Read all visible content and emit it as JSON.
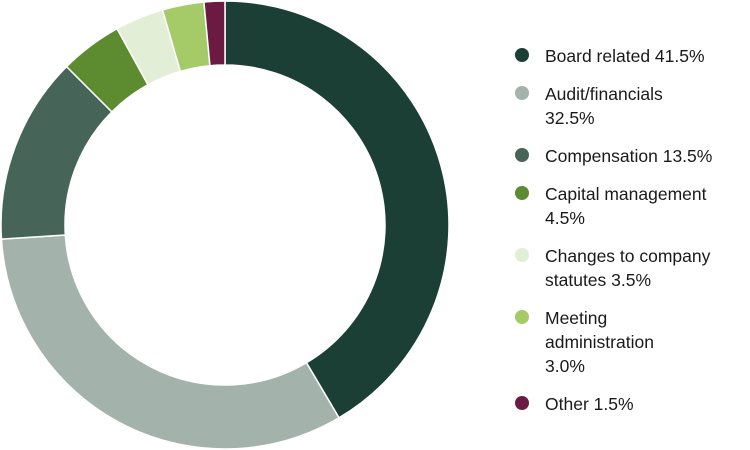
{
  "chart_data": {
    "type": "pie",
    "variant": "donut",
    "start": "top",
    "direction": "clockwise",
    "legend_position": "right",
    "slices": [
      {
        "label": "Board related 41.5%",
        "value": 41.5,
        "color": "#1b3f34"
      },
      {
        "label": "Audit/financials 32.5%",
        "value": 32.5,
        "color": "#a3b3ac"
      },
      {
        "label": "Compensation 13.5%",
        "value": 13.5,
        "color": "#476459"
      },
      {
        "label": "Capital management 4.5%",
        "value": 4.5,
        "color": "#5d8b30"
      },
      {
        "label": "Changes to company statutes 3.5%",
        "value": 3.5,
        "color": "#e2eed6"
      },
      {
        "label": "Meeting administration 3.0%",
        "value": 3.0,
        "color": "#a4cb68"
      },
      {
        "label": "Other 1.5%",
        "value": 1.5,
        "color": "#6b1b42"
      }
    ]
  }
}
